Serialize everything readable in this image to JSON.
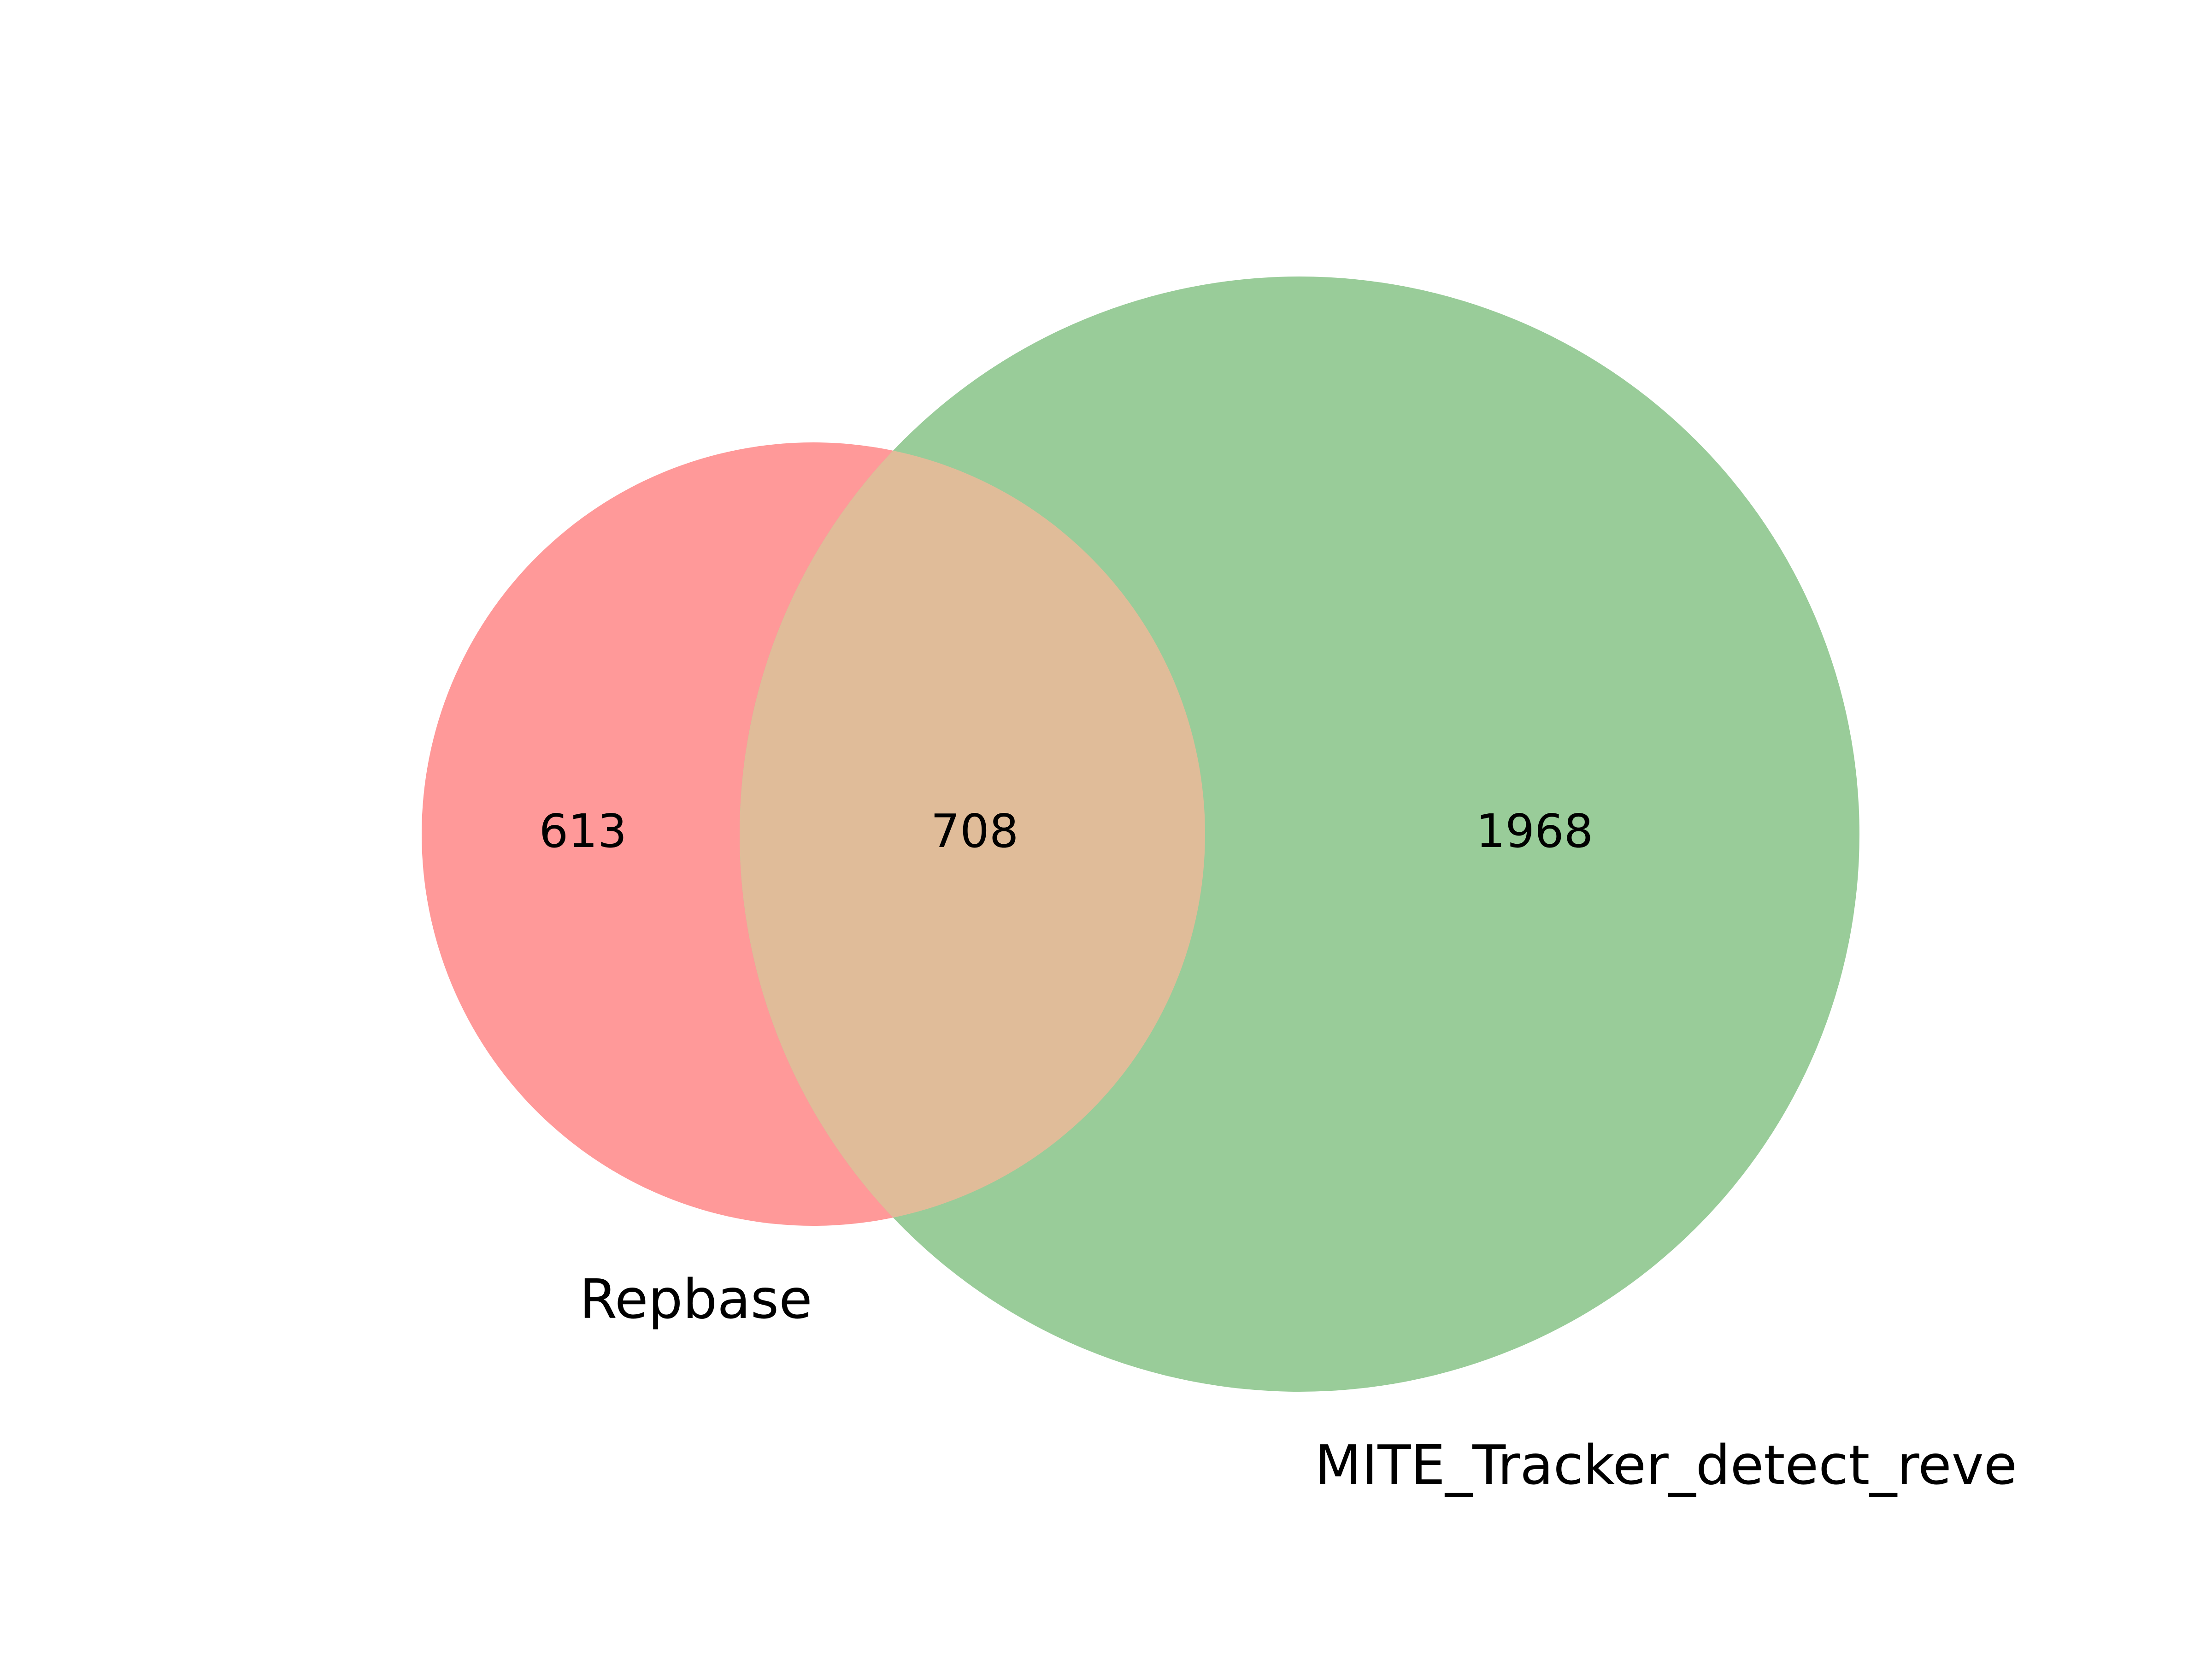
{
  "chart_data": {
    "type": "venn",
    "sets": [
      {
        "label": "Repbase",
        "color": "#ff9999"
      },
      {
        "label": "MITE_Tracker_detect_reve",
        "color": "#99cc99"
      }
    ],
    "intersection_color": "#e0bc99",
    "regions": {
      "only_a": "613",
      "a_and_b": "708",
      "only_b": "1968"
    }
  }
}
